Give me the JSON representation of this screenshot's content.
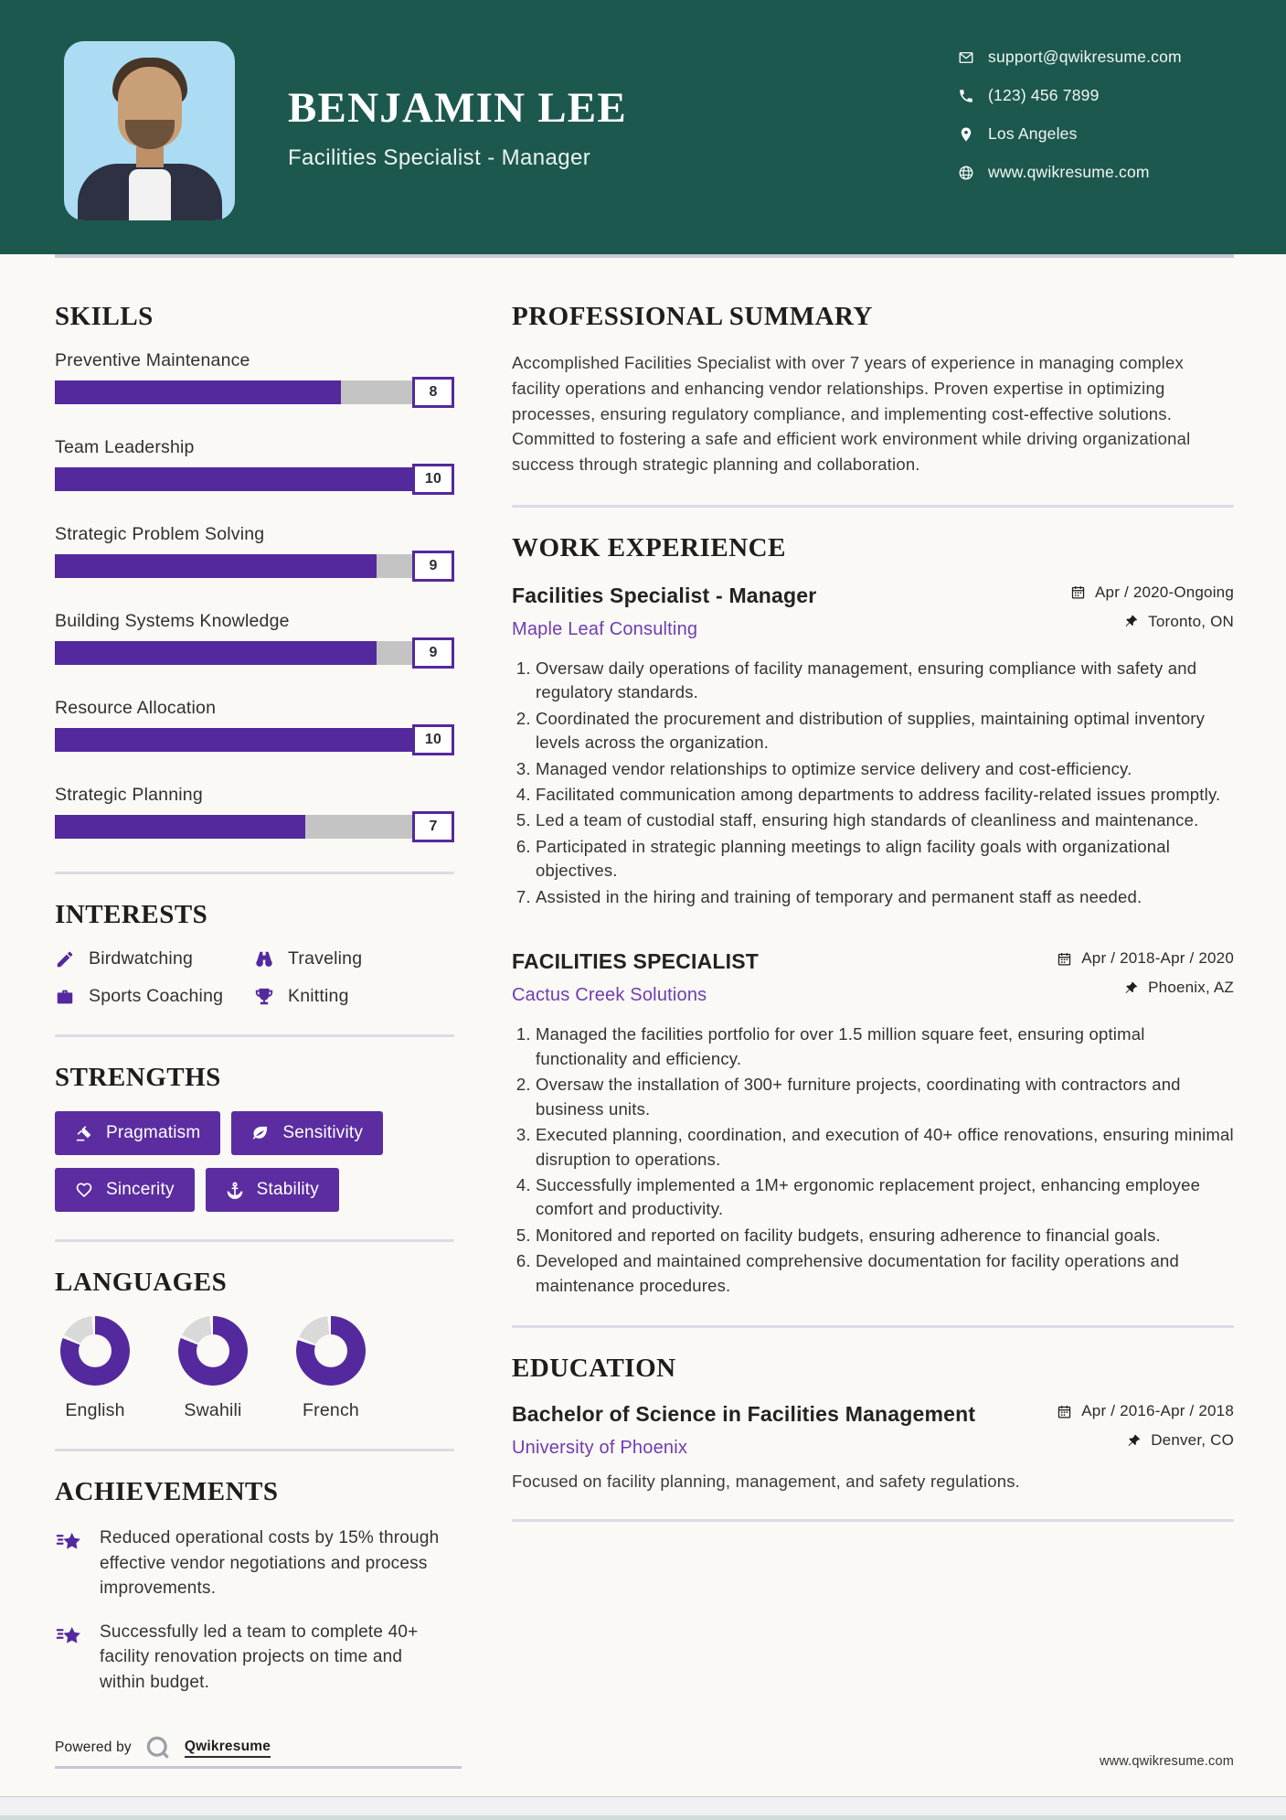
{
  "header": {
    "name": "BENJAMIN LEE",
    "title": "Facilities Specialist - Manager",
    "contacts": [
      {
        "icon": "email-icon",
        "text": "support@qwikresume.com"
      },
      {
        "icon": "phone-icon",
        "text": "(123) 456 7899"
      },
      {
        "icon": "location-icon",
        "text": "Los Angeles"
      },
      {
        "icon": "globe-icon",
        "text": "www.qwikresume.com"
      }
    ]
  },
  "skills": {
    "heading": "SKILLS",
    "items": [
      {
        "name": "Preventive Maintenance",
        "score": 8
      },
      {
        "name": "Team Leadership",
        "score": 10
      },
      {
        "name": "Strategic Problem Solving",
        "score": 9
      },
      {
        "name": "Building Systems Knowledge",
        "score": 9
      },
      {
        "name": "Resource Allocation",
        "score": 10
      },
      {
        "name": "Strategic Planning",
        "score": 7
      }
    ]
  },
  "interests": {
    "heading": "INTERESTS",
    "items": [
      {
        "icon": "edit-icon",
        "label": "Birdwatching"
      },
      {
        "icon": "binoculars-icon",
        "label": "Traveling"
      },
      {
        "icon": "briefcase-icon",
        "label": "Sports Coaching"
      },
      {
        "icon": "trophy-icon",
        "label": "Knitting"
      }
    ]
  },
  "strengths": {
    "heading": "STRENGTHS",
    "items": [
      {
        "icon": "gavel-icon",
        "label": "Pragmatism"
      },
      {
        "icon": "leaf-icon",
        "label": "Sensitivity"
      },
      {
        "icon": "heart-icon",
        "label": "Sincerity"
      },
      {
        "icon": "anchor-icon",
        "label": "Stability"
      }
    ]
  },
  "languages": {
    "heading": "LANGUAGES",
    "items": [
      {
        "label": "English",
        "percent": 81
      },
      {
        "label": "Swahili",
        "percent": 81
      },
      {
        "label": "French",
        "percent": 80
      }
    ]
  },
  "achievements": {
    "heading": "ACHIEVEMENTS",
    "items": [
      "Reduced operational costs by 15% through effective vendor negotiations and process improvements.",
      "Successfully led a team to complete 40+ facility renovation projects on time and within budget."
    ]
  },
  "summary": {
    "heading": "PROFESSIONAL SUMMARY",
    "text": "Accomplished Facilities Specialist with over 7 years of experience in managing complex facility operations and enhancing vendor relationships. Proven expertise in optimizing processes, ensuring regulatory compliance, and implementing cost-effective solutions. Committed to fostering a safe and efficient work environment while driving organizational success through strategic planning and collaboration."
  },
  "experience": {
    "heading": "WORK EXPERIENCE",
    "jobs": [
      {
        "title": "Facilities Specialist - Manager",
        "company": "Maple Leaf Consulting",
        "date": "Apr / 2020-Ongoing",
        "location": "Toronto, ON",
        "bullets": [
          "Oversaw daily operations of facility management, ensuring compliance with safety and regulatory standards.",
          "Coordinated the procurement and distribution of supplies, maintaining optimal inventory levels across the organization.",
          "Managed vendor relationships to optimize service delivery and cost-efficiency.",
          "Facilitated communication among departments to address facility-related issues promptly.",
          "Led a team of custodial staff, ensuring high standards of cleanliness and maintenance.",
          "Participated in strategic planning meetings to align facility goals with organizational objectives.",
          "Assisted in the hiring and training of temporary and permanent staff as needed."
        ]
      },
      {
        "title": "FACILITIES SPECIALIST",
        "company": "Cactus Creek Solutions",
        "date": "Apr / 2018-Apr / 2020",
        "location": "Phoenix, AZ",
        "bullets": [
          "Managed the facilities portfolio for over 1.5 million square feet, ensuring optimal functionality and efficiency.",
          "Oversaw the installation of 300+ furniture projects, coordinating with contractors and business units.",
          "Executed planning, coordination, and execution of 40+ office renovations, ensuring minimal disruption to operations.",
          "Successfully implemented a 1M+ ergonomic replacement project, enhancing employee comfort and productivity.",
          "Monitored and reported on facility budgets, ensuring adherence to financial goals.",
          "Developed and maintained comprehensive documentation for facility operations and maintenance procedures."
        ]
      }
    ]
  },
  "education": {
    "heading": "EDUCATION",
    "degree": "Bachelor of Science in Facilities Management",
    "school": "University of Phoenix",
    "date": "Apr / 2016-Apr / 2018",
    "location": "Denver, CO",
    "note": "Focused on facility planning, management, and safety regulations."
  },
  "footer": {
    "powered_by": "Powered by",
    "brand": "Qwikresume",
    "url": "www.qwikresume.com"
  },
  "colors": {
    "teal": "#1d584e",
    "purple": "#54299e",
    "track_gray": "#c4c4c4",
    "divider": "#dcd9e8",
    "photo_bg": "#abdcf3"
  }
}
